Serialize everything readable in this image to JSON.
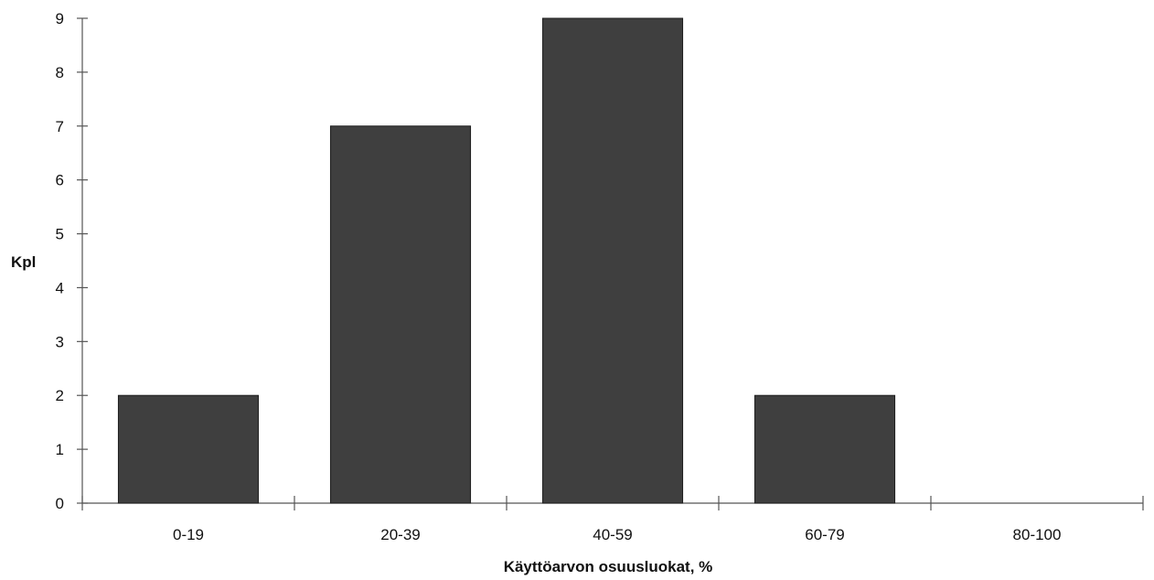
{
  "chart_data": {
    "type": "bar",
    "categories": [
      "0-19",
      "20-39",
      "40-59",
      "60-79",
      "80-100"
    ],
    "values": [
      2,
      7,
      9,
      2,
      0
    ],
    "title": "",
    "xlabel": "Käyttöarvon osuusluokat, %",
    "ylabel": "Kpl",
    "ylim": [
      0,
      9
    ],
    "yticks": [
      "0",
      "1",
      "2",
      "3",
      "4",
      "5",
      "6",
      "7",
      "8",
      "9"
    ],
    "grid": false,
    "legend": "none",
    "colors": {
      "bar": "#3f3f3f",
      "axis": "#555555"
    }
  }
}
